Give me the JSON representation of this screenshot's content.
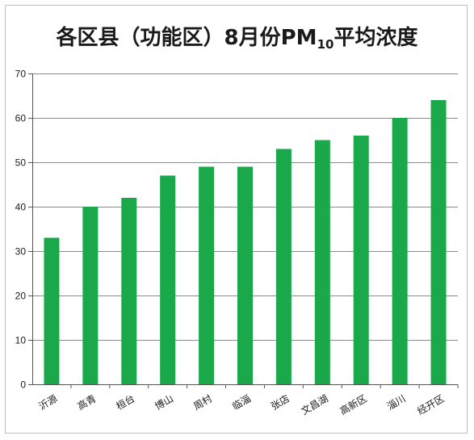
{
  "chart_data": {
    "type": "bar",
    "title_main": "各区县（功能区）8月份PM",
    "title_subscript": "10",
    "title_suffix": "平均浓度",
    "categories": [
      "沂源",
      "高青",
      "桓台",
      "博山",
      "周村",
      "临淄",
      "张店",
      "文昌湖",
      "高新区",
      "淄川",
      "经开区"
    ],
    "values": [
      33,
      40,
      42,
      47,
      49,
      49,
      53,
      55,
      56,
      60,
      64
    ],
    "ylim": [
      0,
      70
    ],
    "yticks": [
      0,
      10,
      20,
      30,
      40,
      50,
      60,
      70
    ],
    "xlabel": "",
    "ylabel": "",
    "grid": true,
    "bar_color": "#1aa84a",
    "grid_color": "#8c8c8c"
  }
}
